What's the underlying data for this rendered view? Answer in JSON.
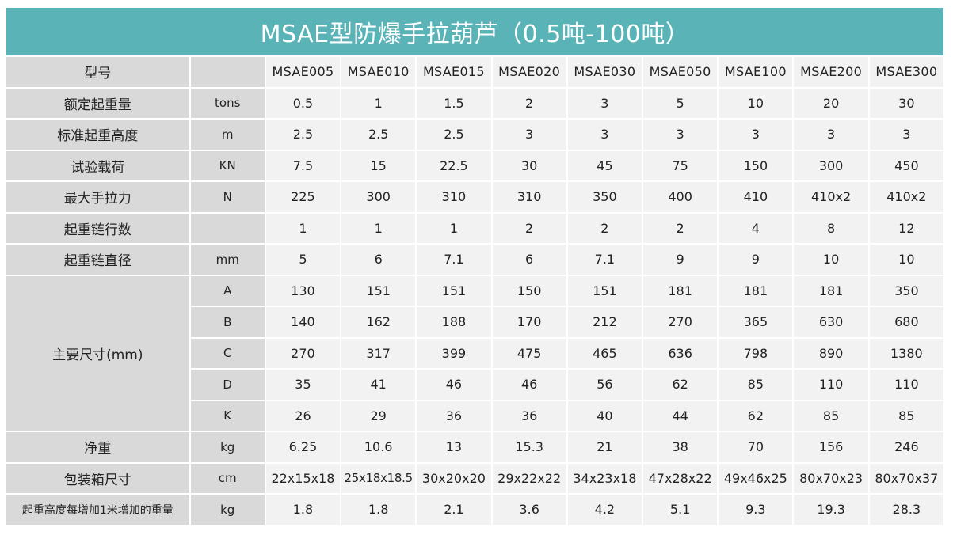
{
  "title": "MSAE型防爆手拉葫芦（0.5吨-100吨）",
  "header": {
    "label": "型号",
    "unit": "",
    "models": [
      "MSAE005",
      "MSAE010",
      "MSAE015",
      "MSAE020",
      "MSAE030",
      "MSAE050",
      "MSAE100",
      "MSAE200",
      "MSAE300"
    ]
  },
  "rows": [
    {
      "label": "额定起重量",
      "unit": "tons",
      "values": [
        "0.5",
        "1",
        "1.5",
        "2",
        "3",
        "5",
        "10",
        "20",
        "30"
      ]
    },
    {
      "label": "标准起重高度",
      "unit": "m",
      "values": [
        "2.5",
        "2.5",
        "2.5",
        "3",
        "3",
        "3",
        "3",
        "3",
        "3"
      ]
    },
    {
      "label": "试验载荷",
      "unit": "KN",
      "values": [
        "7.5",
        "15",
        "22.5",
        "30",
        "45",
        "75",
        "150",
        "300",
        "450"
      ]
    },
    {
      "label": "最大手拉力",
      "unit": "N",
      "values": [
        "225",
        "300",
        "310",
        "310",
        "350",
        "400",
        "410",
        "410x2",
        "410x2"
      ]
    },
    {
      "label": "起重链行数",
      "unit": "",
      "values": [
        "1",
        "1",
        "1",
        "2",
        "2",
        "2",
        "4",
        "8",
        "12"
      ]
    },
    {
      "label": "起重链直径",
      "unit": "mm",
      "values": [
        "5",
        "6",
        "7.1",
        "6",
        "7.1",
        "9",
        "9",
        "10",
        "10"
      ]
    }
  ],
  "dimensions": {
    "label": "主要尺寸(mm)",
    "rows": [
      {
        "unit": "A",
        "values": [
          "130",
          "151",
          "151",
          "150",
          "151",
          "181",
          "181",
          "181",
          "350"
        ]
      },
      {
        "unit": "B",
        "values": [
          "140",
          "162",
          "188",
          "170",
          "212",
          "270",
          "365",
          "630",
          "680"
        ]
      },
      {
        "unit": "C",
        "values": [
          "270",
          "317",
          "399",
          "475",
          "465",
          "636",
          "798",
          "890",
          "1380"
        ]
      },
      {
        "unit": "D",
        "values": [
          "35",
          "41",
          "46",
          "46",
          "56",
          "62",
          "85",
          "110",
          "110"
        ]
      },
      {
        "unit": "K",
        "values": [
          "26",
          "29",
          "36",
          "36",
          "40",
          "44",
          "62",
          "85",
          "85"
        ]
      }
    ]
  },
  "tail_rows": [
    {
      "label": "净重",
      "unit": "kg",
      "values": [
        "6.25",
        "10.6",
        "13",
        "15.3",
        "21",
        "38",
        "70",
        "156",
        "246"
      ]
    },
    {
      "label": "包装箱尺寸",
      "unit": "cm",
      "values": [
        "22x15x18",
        "25x18x18.5",
        "30x20x20",
        "29x22x22",
        "34x23x18",
        "47x28x22",
        "49x46x25",
        "80x70x23",
        "80x70x37"
      ]
    },
    {
      "label": "起重高度每增加1米增加的重量",
      "unit": "kg",
      "values": [
        "1.8",
        "1.8",
        "2.1",
        "3.6",
        "4.2",
        "5.1",
        "9.3",
        "19.3",
        "28.3"
      ]
    }
  ]
}
